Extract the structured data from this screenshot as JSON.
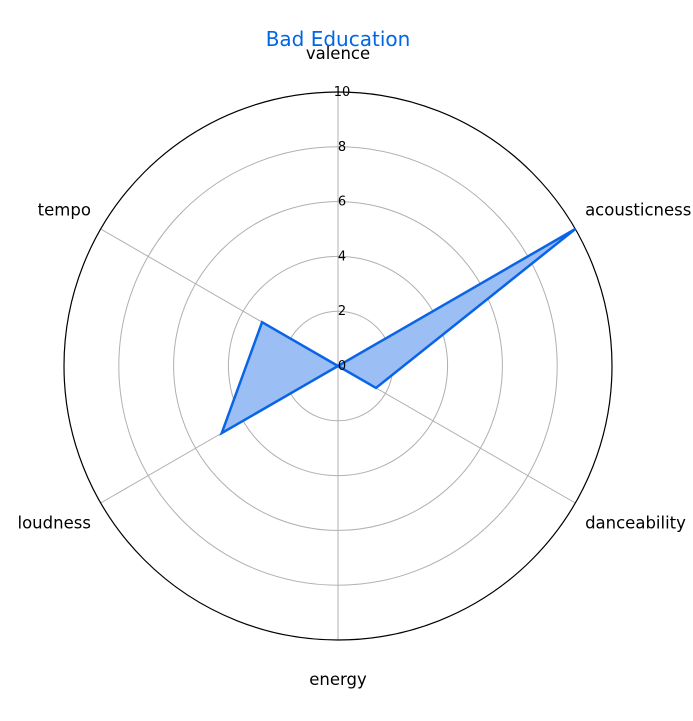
{
  "chart_data": {
    "type": "radar",
    "title": "Bad Education",
    "axes": [
      "valence",
      "acousticness",
      "danceability",
      "energy",
      "loudness",
      "tempo"
    ],
    "series": [
      {
        "values": [
          0.0,
          10.0,
          1.6,
          0.0,
          4.9,
          3.2
        ]
      }
    ],
    "rlim": [
      0,
      10
    ],
    "rticks": [
      "0",
      "2",
      "4",
      "6",
      "8",
      "10"
    ],
    "grid": true,
    "colors": {
      "title": "#0066e6",
      "line": "#0a64e6",
      "fill": "#9bbff5",
      "grid": "#b0b0b0",
      "frame": "#000000"
    }
  }
}
